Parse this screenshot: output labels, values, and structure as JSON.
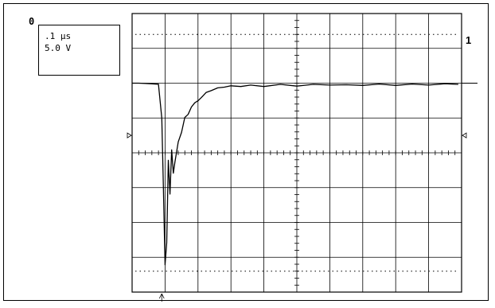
{
  "channel_marker": "0",
  "readout": {
    "timebase": ".1 µs",
    "volts_per_div": "5.0 V"
  },
  "channel_label": "1",
  "chart_data": {
    "type": "line",
    "title": "",
    "xlabel": "",
    "ylabel": "",
    "grid": true,
    "x_divisions": 10,
    "y_divisions": 8,
    "time_per_div_us": 0.1,
    "volts_per_div": 5.0,
    "series": [
      {
        "x": [
          0.0,
          0.2,
          0.4,
          0.8,
          0.9,
          0.95,
          1.0,
          1.05,
          1.1,
          1.15,
          1.2,
          1.25,
          1.3,
          1.4,
          1.5,
          1.6,
          1.7,
          1.8,
          1.9,
          2.0,
          2.1,
          2.25,
          2.4,
          2.6,
          2.8,
          3.0,
          3.3,
          3.6,
          4.0,
          4.5,
          5.0,
          5.5,
          6.0,
          6.5,
          7.0,
          7.5,
          8.0,
          8.5,
          9.0,
          9.5,
          9.9
        ],
        "y": [
          2.0,
          2.0,
          1.99,
          1.97,
          1.0,
          -1.0,
          -3.2,
          -2.6,
          -0.2,
          -1.2,
          0.1,
          -0.6,
          -0.25,
          0.3,
          0.6,
          1.0,
          1.12,
          1.3,
          1.45,
          1.48,
          1.6,
          1.72,
          1.8,
          1.85,
          1.9,
          1.91,
          1.92,
          1.93,
          1.92,
          1.95,
          1.93,
          1.95,
          1.96,
          1.94,
          1.95,
          1.96,
          1.95,
          1.96,
          1.96,
          1.97,
          1.98
        ]
      }
    ],
    "channel_reference_level": 2,
    "trigger_level": 0.5,
    "trigger_time": 0.9,
    "colors": {
      "trace": "#000000",
      "grid": "#000000",
      "background": "#ffffff"
    }
  }
}
